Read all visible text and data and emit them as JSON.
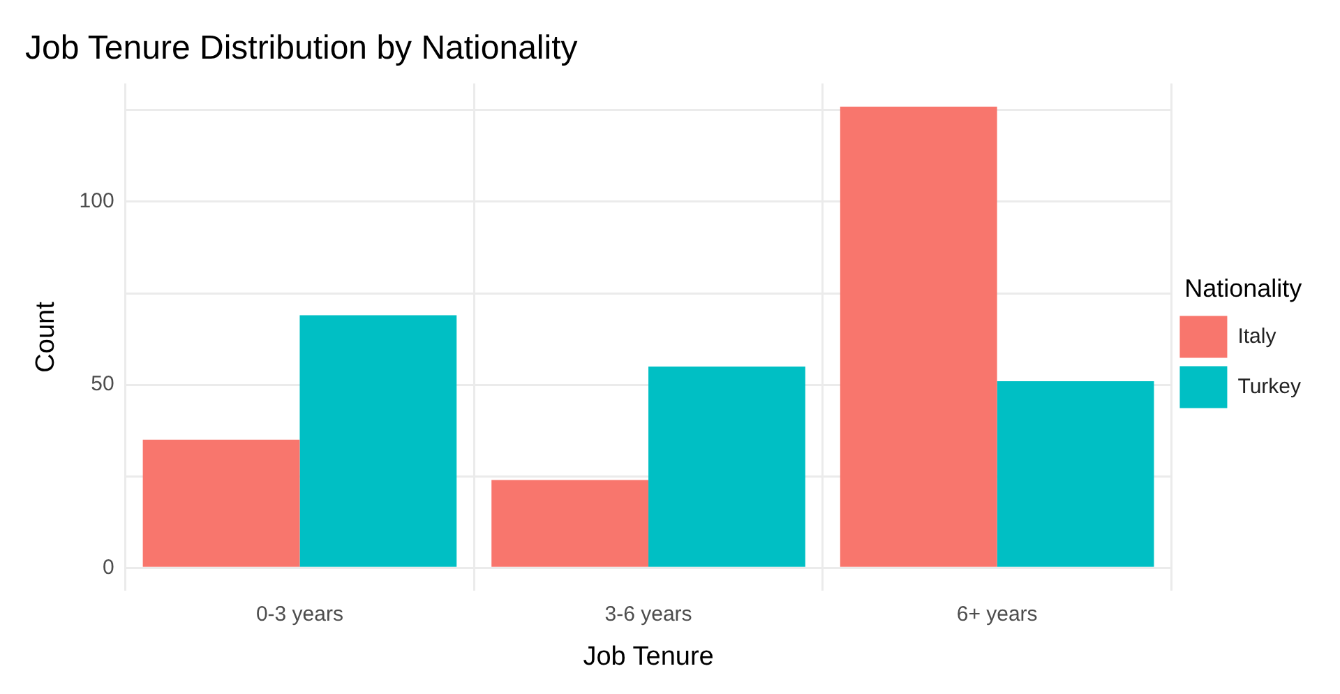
{
  "chart_data": {
    "type": "bar",
    "title": "Job Tenure Distribution by Nationality",
    "xlabel": "Job Tenure",
    "ylabel": "Count",
    "legend_title": "Nationality",
    "categories": [
      "0-3 years",
      "3-6 years",
      "6+ years"
    ],
    "series": [
      {
        "name": "Italy",
        "color": "#f8766d",
        "values": [
          35,
          24,
          126
        ]
      },
      {
        "name": "Turkey",
        "color": "#00bfc4",
        "values": [
          69,
          55,
          51
        ]
      }
    ],
    "ylim": [
      -6.3,
      132.3
    ],
    "yticks": [
      0,
      {
        "value": 25,
        "label": null
      },
      50,
      {
        "value": 75,
        "label": null
      },
      100,
      {
        "value": 125,
        "label": null
      }
    ],
    "grid": true,
    "legend": "right"
  }
}
